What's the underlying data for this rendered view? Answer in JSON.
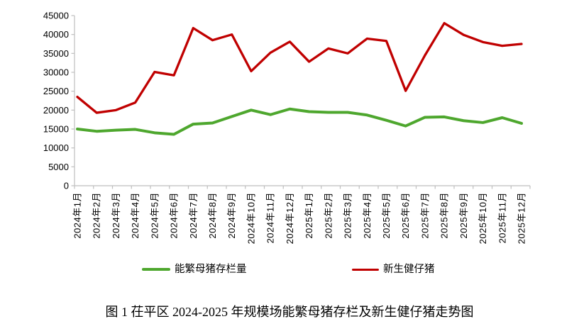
{
  "chart_data": {
    "type": "line",
    "title": "",
    "xlabel": "",
    "ylabel": "",
    "grid": false,
    "legend_position": "bottom",
    "axis_color": "#BFBFBF",
    "label_color": "#000000",
    "ylim": [
      0,
      45000
    ],
    "yticks": [
      45000,
      40000,
      35000,
      30000,
      25000,
      20000,
      15000,
      10000,
      5000,
      0
    ],
    "categories": [
      "2024年1月",
      "2024年2月",
      "2024年3月",
      "2024年4月",
      "2024年5月",
      "2024年6月",
      "2024年7月",
      "2024年8月",
      "2024年9月",
      "2024年10月",
      "2024年11月",
      "2024年12月",
      "2025年1月",
      "2025年2月",
      "2025年3月",
      "2025年4月",
      "2025年5月",
      "2025年6月",
      "2025年7月",
      "2025年8月",
      "2025年9月",
      "2025年10月",
      "2025年11月",
      "2025年12月"
    ],
    "series": [
      {
        "name": "能繁母猪存栏量",
        "color": "#4EA72E",
        "values": [
          15000,
          14400,
          14700,
          14900,
          14000,
          13600,
          16300,
          16600,
          18300,
          20000,
          18800,
          20300,
          19600,
          19400,
          19400,
          18700,
          17300,
          15800,
          18100,
          18200,
          17200,
          16700,
          18000,
          16500
        ]
      },
      {
        "name": "新生健仔猪",
        "color": "#C00000",
        "values": [
          23500,
          19300,
          20000,
          22000,
          30100,
          29200,
          41700,
          38500,
          40000,
          30300,
          35200,
          38100,
          32800,
          36300,
          35000,
          38900,
          38300,
          25100,
          34500,
          43000,
          39900,
          38000,
          37000,
          37500
        ]
      }
    ]
  },
  "caption": {
    "text": "图 1 茌平区 2024-2025 年规模场能繁母猪存栏及新生健仔猪走势图"
  }
}
